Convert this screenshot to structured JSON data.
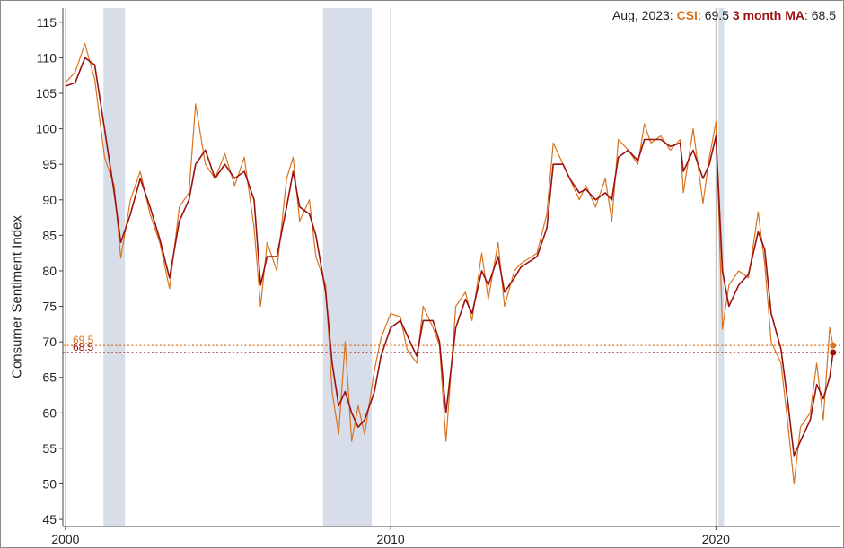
{
  "header": {
    "date": "Aug, 2023:",
    "csi_label": "CSI",
    "csi_value": ": 69.5",
    "ma_label": "3 month MA",
    "ma_value": ": 68.5"
  },
  "chart_data": {
    "type": "line",
    "title": "",
    "ylabel": "Consumer Sentiment Index",
    "xlabel": "",
    "xlim": [
      1999.92,
      2023.8
    ],
    "ylim": [
      44,
      117
    ],
    "y_ticks": [
      45,
      50,
      55,
      60,
      65,
      70,
      75,
      80,
      85,
      90,
      95,
      100,
      105,
      110,
      115
    ],
    "x_ticks": [
      2000,
      2010,
      2020
    ],
    "x_tick_labels": [
      "2000",
      "2010",
      "2020"
    ],
    "recessions": [
      [
        2001.17,
        2001.83
      ],
      [
        2007.92,
        2009.42
      ],
      [
        2020.08,
        2020.25
      ]
    ],
    "reference_lines": [
      {
        "value": 69.5,
        "label": "69.5",
        "color": "#d9731e"
      },
      {
        "value": 68.5,
        "label": "68.5",
        "color": "#9b1111"
      }
    ],
    "colors": {
      "csi": "#d9731e",
      "ma": "#9b1111",
      "recession": "#d7dee9",
      "vline": "#b5b5b5"
    },
    "series": [
      {
        "name": "CSI",
        "points": [
          [
            2000.0,
            106.5
          ],
          [
            2000.3,
            108.0
          ],
          [
            2000.6,
            112.0
          ],
          [
            2000.9,
            107.0
          ],
          [
            2001.2,
            96.0
          ],
          [
            2001.5,
            92.0
          ],
          [
            2001.7,
            81.8
          ],
          [
            2002.0,
            90.0
          ],
          [
            2002.3,
            94.0
          ],
          [
            2002.6,
            88.0
          ],
          [
            2002.9,
            84.0
          ],
          [
            2003.2,
            77.5
          ],
          [
            2003.5,
            89.0
          ],
          [
            2003.8,
            91.0
          ],
          [
            2004.0,
            103.5
          ],
          [
            2004.3,
            95.0
          ],
          [
            2004.6,
            93.0
          ],
          [
            2004.9,
            96.5
          ],
          [
            2005.2,
            92.0
          ],
          [
            2005.5,
            96.0
          ],
          [
            2005.8,
            86.0
          ],
          [
            2006.0,
            75.0
          ],
          [
            2006.2,
            84.0
          ],
          [
            2006.5,
            80.0
          ],
          [
            2006.8,
            93.0
          ],
          [
            2007.0,
            96.0
          ],
          [
            2007.2,
            87.0
          ],
          [
            2007.5,
            90.0
          ],
          [
            2007.7,
            82.0
          ],
          [
            2008.0,
            78.0
          ],
          [
            2008.2,
            63.0
          ],
          [
            2008.4,
            57.0
          ],
          [
            2008.6,
            70.0
          ],
          [
            2008.8,
            56.0
          ],
          [
            2009.0,
            61.0
          ],
          [
            2009.2,
            57.0
          ],
          [
            2009.5,
            66.0
          ],
          [
            2009.7,
            70.5
          ],
          [
            2010.0,
            74.0
          ],
          [
            2010.3,
            73.5
          ],
          [
            2010.5,
            69.0
          ],
          [
            2010.8,
            67.0
          ],
          [
            2011.0,
            75.0
          ],
          [
            2011.3,
            72.0
          ],
          [
            2011.5,
            69.5
          ],
          [
            2011.7,
            56.0
          ],
          [
            2012.0,
            75.0
          ],
          [
            2012.3,
            77.0
          ],
          [
            2012.5,
            73.0
          ],
          [
            2012.8,
            82.5
          ],
          [
            2013.0,
            76.0
          ],
          [
            2013.3,
            84.0
          ],
          [
            2013.5,
            75.0
          ],
          [
            2013.8,
            80.0
          ],
          [
            2014.0,
            81.0
          ],
          [
            2014.5,
            82.5
          ],
          [
            2014.8,
            88.0
          ],
          [
            2015.0,
            98.0
          ],
          [
            2015.3,
            95.0
          ],
          [
            2015.5,
            93.0
          ],
          [
            2015.8,
            90.0
          ],
          [
            2016.0,
            92.0
          ],
          [
            2016.3,
            89.0
          ],
          [
            2016.6,
            93.0
          ],
          [
            2016.8,
            87.0
          ],
          [
            2017.0,
            98.5
          ],
          [
            2017.3,
            97.0
          ],
          [
            2017.6,
            95.0
          ],
          [
            2017.8,
            100.7
          ],
          [
            2018.0,
            98.0
          ],
          [
            2018.3,
            99.0
          ],
          [
            2018.6,
            97.0
          ],
          [
            2018.9,
            98.5
          ],
          [
            2019.0,
            91.0
          ],
          [
            2019.3,
            100.0
          ],
          [
            2019.6,
            89.5
          ],
          [
            2019.8,
            96.0
          ],
          [
            2020.0,
            101.0
          ],
          [
            2020.2,
            71.8
          ],
          [
            2020.4,
            78.0
          ],
          [
            2020.7,
            80.0
          ],
          [
            2021.0,
            79.0
          ],
          [
            2021.3,
            88.3
          ],
          [
            2021.5,
            81.0
          ],
          [
            2021.7,
            70.0
          ],
          [
            2022.0,
            67.0
          ],
          [
            2022.2,
            59.0
          ],
          [
            2022.4,
            50.0
          ],
          [
            2022.6,
            58.0
          ],
          [
            2022.9,
            60.0
          ],
          [
            2023.1,
            67.0
          ],
          [
            2023.3,
            59.0
          ],
          [
            2023.5,
            72.0
          ],
          [
            2023.6,
            69.5
          ]
        ]
      },
      {
        "name": "3 month MA",
        "points": [
          [
            2000.0,
            106.0
          ],
          [
            2000.3,
            106.5
          ],
          [
            2000.6,
            110.0
          ],
          [
            2000.9,
            109.0
          ],
          [
            2001.2,
            100.0
          ],
          [
            2001.5,
            91.0
          ],
          [
            2001.7,
            84.0
          ],
          [
            2002.0,
            88.0
          ],
          [
            2002.3,
            93.0
          ],
          [
            2002.6,
            89.0
          ],
          [
            2002.9,
            84.5
          ],
          [
            2003.2,
            79.0
          ],
          [
            2003.5,
            87.0
          ],
          [
            2003.8,
            90.0
          ],
          [
            2004.0,
            95.0
          ],
          [
            2004.3,
            97.0
          ],
          [
            2004.6,
            93.0
          ],
          [
            2004.9,
            95.0
          ],
          [
            2005.2,
            93.0
          ],
          [
            2005.5,
            94.0
          ],
          [
            2005.8,
            90.0
          ],
          [
            2006.0,
            78.0
          ],
          [
            2006.2,
            82.0
          ],
          [
            2006.5,
            82.0
          ],
          [
            2006.8,
            89.0
          ],
          [
            2007.0,
            94.0
          ],
          [
            2007.2,
            89.0
          ],
          [
            2007.5,
            88.0
          ],
          [
            2007.7,
            85.0
          ],
          [
            2008.0,
            77.0
          ],
          [
            2008.2,
            67.0
          ],
          [
            2008.4,
            61.0
          ],
          [
            2008.6,
            63.0
          ],
          [
            2008.8,
            60.0
          ],
          [
            2009.0,
            58.0
          ],
          [
            2009.2,
            59.0
          ],
          [
            2009.5,
            63.0
          ],
          [
            2009.7,
            68.0
          ],
          [
            2010.0,
            72.0
          ],
          [
            2010.3,
            73.0
          ],
          [
            2010.5,
            71.0
          ],
          [
            2010.8,
            68.0
          ],
          [
            2011.0,
            73.0
          ],
          [
            2011.3,
            73.0
          ],
          [
            2011.5,
            70.0
          ],
          [
            2011.7,
            60.0
          ],
          [
            2012.0,
            72.0
          ],
          [
            2012.3,
            76.0
          ],
          [
            2012.5,
            74.0
          ],
          [
            2012.8,
            80.0
          ],
          [
            2013.0,
            78.0
          ],
          [
            2013.3,
            82.0
          ],
          [
            2013.5,
            77.0
          ],
          [
            2013.8,
            79.0
          ],
          [
            2014.0,
            80.5
          ],
          [
            2014.5,
            82.0
          ],
          [
            2014.8,
            86.0
          ],
          [
            2015.0,
            95.0
          ],
          [
            2015.3,
            95.0
          ],
          [
            2015.5,
            93.0
          ],
          [
            2015.8,
            91.0
          ],
          [
            2016.0,
            91.5
          ],
          [
            2016.3,
            90.0
          ],
          [
            2016.6,
            91.0
          ],
          [
            2016.8,
            90.0
          ],
          [
            2017.0,
            96.0
          ],
          [
            2017.3,
            97.0
          ],
          [
            2017.6,
            95.5
          ],
          [
            2017.8,
            98.5
          ],
          [
            2018.0,
            98.5
          ],
          [
            2018.3,
            98.5
          ],
          [
            2018.6,
            97.5
          ],
          [
            2018.9,
            98.0
          ],
          [
            2019.0,
            94.0
          ],
          [
            2019.3,
            97.0
          ],
          [
            2019.6,
            93.0
          ],
          [
            2019.8,
            95.0
          ],
          [
            2020.0,
            99.0
          ],
          [
            2020.2,
            80.0
          ],
          [
            2020.4,
            75.0
          ],
          [
            2020.7,
            78.0
          ],
          [
            2021.0,
            79.5
          ],
          [
            2021.3,
            85.5
          ],
          [
            2021.5,
            83.0
          ],
          [
            2021.7,
            74.0
          ],
          [
            2022.0,
            69.0
          ],
          [
            2022.2,
            62.0
          ],
          [
            2022.4,
            54.0
          ],
          [
            2022.6,
            56.0
          ],
          [
            2022.9,
            59.0
          ],
          [
            2023.1,
            64.0
          ],
          [
            2023.3,
            62.0
          ],
          [
            2023.5,
            65.0
          ],
          [
            2023.6,
            68.5
          ]
        ]
      }
    ]
  }
}
